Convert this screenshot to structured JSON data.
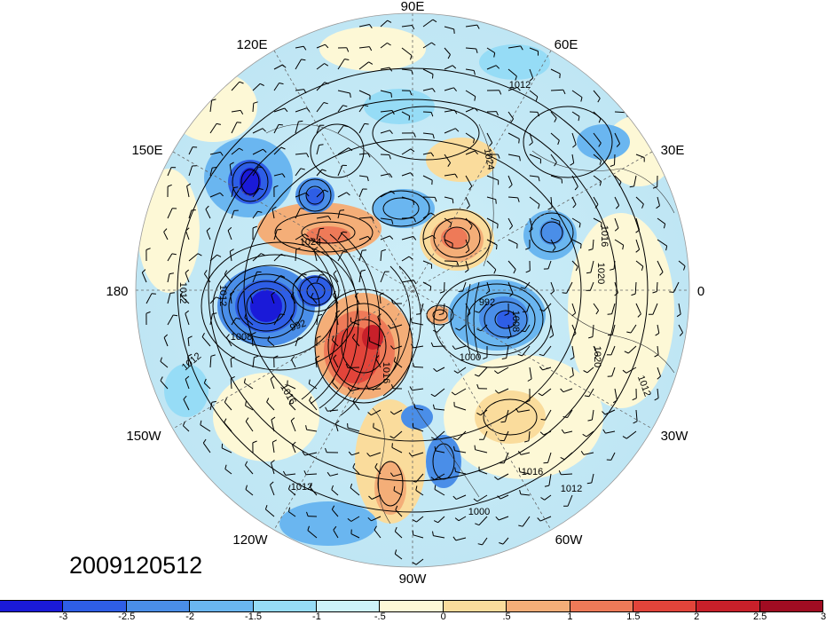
{
  "map": {
    "longitude_labels": [
      "90E",
      "60E",
      "30E",
      "0",
      "30W",
      "60W",
      "90W",
      "120W",
      "150W",
      "180",
      "150E",
      "120E"
    ],
    "contour_labels": [
      "1012",
      "1024",
      "1024",
      "1012",
      "1016",
      "1020",
      "992",
      "992",
      "1000",
      "1008",
      "1020",
      "1012",
      "1012",
      "1016",
      "1012",
      "1016",
      "1012",
      "1008",
      "1012",
      "1016",
      "1000"
    ]
  },
  "date_stamp": "2009120512",
  "colorbar": {
    "colors": [
      "#1a1ad8",
      "#2e5ee6",
      "#4a8ee8",
      "#6ab6f0",
      "#96dcf6",
      "#cdf2fa",
      "#fdf8d6",
      "#fadc9c",
      "#f4ae78",
      "#ee7a58",
      "#e2443a",
      "#c8202a",
      "#a00c22"
    ],
    "tick_labels": [
      "-3",
      "-2.5",
      "-2",
      "-1.5",
      "-1",
      "-.5",
      "0",
      ".5",
      "1",
      "1.5",
      "2",
      "2.5",
      "3"
    ]
  }
}
